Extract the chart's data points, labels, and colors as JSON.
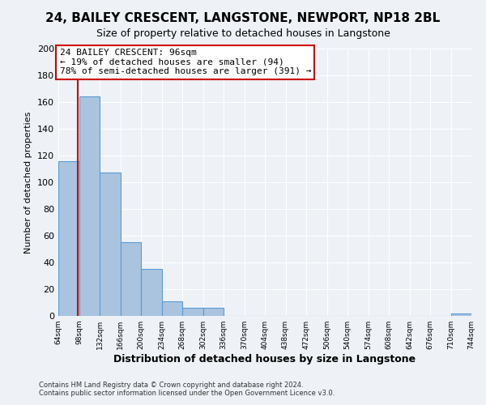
{
  "title": "24, BAILEY CRESCENT, LANGSTONE, NEWPORT, NP18 2BL",
  "subtitle": "Size of property relative to detached houses in Langstone",
  "xlabel": "Distribution of detached houses by size in Langstone",
  "ylabel": "Number of detached properties",
  "footer_line1": "Contains HM Land Registry data © Crown copyright and database right 2024.",
  "footer_line2": "Contains public sector information licensed under the Open Government Licence v3.0.",
  "bin_edges": [
    64,
    98,
    132,
    166,
    200,
    234,
    268,
    302,
    336,
    370,
    404,
    438,
    472,
    506,
    540,
    574,
    608,
    642,
    676,
    710,
    744
  ],
  "bin_labels": [
    "64sqm",
    "98sqm",
    "132sqm",
    "166sqm",
    "200sqm",
    "234sqm",
    "268sqm",
    "302sqm",
    "336sqm",
    "370sqm",
    "404sqm",
    "438sqm",
    "472sqm",
    "506sqm",
    "540sqm",
    "574sqm",
    "608sqm",
    "642sqm",
    "676sqm",
    "710sqm",
    "744sqm"
  ],
  "counts": [
    116,
    164,
    107,
    55,
    35,
    11,
    6,
    6,
    0,
    0,
    0,
    0,
    0,
    0,
    0,
    0,
    0,
    0,
    0,
    2
  ],
  "bar_color": "#aac4e0",
  "bar_edge_color": "#5b9bd5",
  "ylim": [
    0,
    200
  ],
  "yticks": [
    0,
    20,
    40,
    60,
    80,
    100,
    120,
    140,
    160,
    180,
    200
  ],
  "property_size": 96,
  "red_line_color": "#cc0000",
  "annotation_text_line1": "24 BAILEY CRESCENT: 96sqm",
  "annotation_text_line2": "← 19% of detached houses are smaller (94)",
  "annotation_text_line3": "78% of semi-detached houses are larger (391) →",
  "annotation_box_color": "#ffffff",
  "annotation_box_edge": "#cc0000",
  "background_color": "#eef2f7",
  "grid_color": "#ffffff",
  "title_fontsize": 11,
  "subtitle_fontsize": 9
}
